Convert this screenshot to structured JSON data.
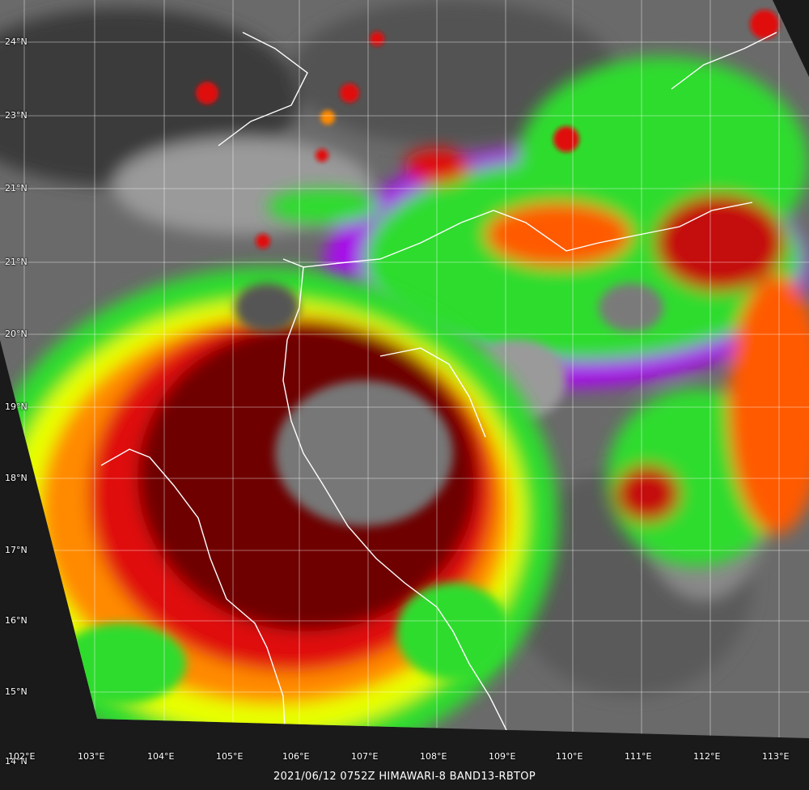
{
  "caption": "2021/06/12 0752Z HIMAWARI-8 BAND13-RBTOP",
  "latitude_labels": [
    "24°N",
    "23°N",
    "21°N",
    "20°N",
    "19°N",
    "18°N",
    "17°N",
    "16°N",
    "15°N",
    "14°N"
  ],
  "longitude_labels": [
    "102°E",
    "103°E",
    "104°E",
    "105°E",
    "106°E",
    "107°E",
    "108°E",
    "109°E",
    "110°E",
    "111°E",
    "112°E",
    "113°E"
  ],
  "colors": {
    "background": "#1a1a1a",
    "coldest_tops": "#6e0000",
    "red": "#e01010",
    "orange": "#ff8a00",
    "yellow": "#e8ff00",
    "green": "#2fdc2f",
    "blue": "#1a3cff",
    "purple": "#b000ff",
    "clear_gray": "#6a6a6a",
    "coastline": "#ffffff"
  }
}
